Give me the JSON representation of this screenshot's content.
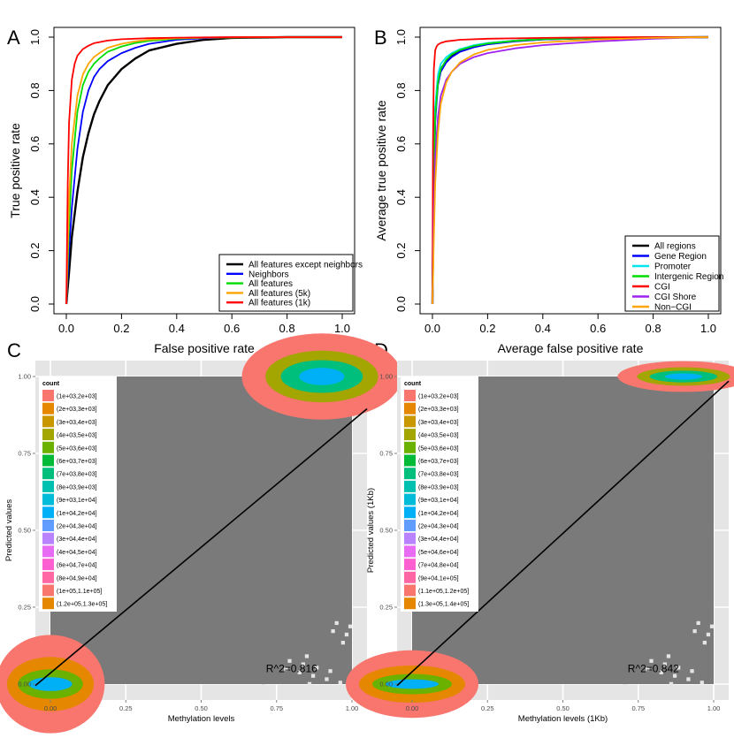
{
  "panels": {
    "A": {
      "letter": "A"
    },
    "B": {
      "letter": "B"
    },
    "C": {
      "letter": "C"
    },
    "D": {
      "letter": "D"
    }
  },
  "chart_data": [
    {
      "id": "A",
      "type": "line",
      "xlabel": "False positive rate",
      "ylabel": "True positive rate",
      "xlim": [
        0,
        1
      ],
      "ylim": [
        0,
        1
      ],
      "xticks": [
        "0.0",
        "0.2",
        "0.4",
        "0.6",
        "0.8",
        "1.0"
      ],
      "yticks": [
        "0.0",
        "0.2",
        "0.4",
        "0.6",
        "0.8",
        "1.0"
      ],
      "legend_position": "bottom-right",
      "series": [
        {
          "name": "All features except neighbors",
          "color": "#000000",
          "x": [
            0,
            0.01,
            0.02,
            0.04,
            0.06,
            0.08,
            0.1,
            0.12,
            0.15,
            0.2,
            0.25,
            0.3,
            0.4,
            0.5,
            0.6,
            0.8,
            1.0
          ],
          "y": [
            0,
            0.12,
            0.25,
            0.42,
            0.55,
            0.64,
            0.71,
            0.76,
            0.82,
            0.88,
            0.92,
            0.95,
            0.975,
            0.99,
            0.997,
            1.0,
            1.0
          ]
        },
        {
          "name": "Neighbors",
          "color": "#0000ff",
          "x": [
            0,
            0.01,
            0.02,
            0.04,
            0.06,
            0.08,
            0.1,
            0.12,
            0.15,
            0.2,
            0.25,
            0.3,
            0.4,
            0.5,
            0.6,
            0.8,
            1.0
          ],
          "y": [
            0,
            0.2,
            0.36,
            0.58,
            0.72,
            0.8,
            0.85,
            0.88,
            0.91,
            0.94,
            0.96,
            0.975,
            0.99,
            0.996,
            0.999,
            1.0,
            1.0
          ]
        },
        {
          "name": "All features",
          "color": "#00dd00",
          "x": [
            0,
            0.01,
            0.02,
            0.04,
            0.06,
            0.08,
            0.1,
            0.12,
            0.15,
            0.2,
            0.25,
            0.3,
            0.4,
            0.5,
            0.6,
            0.8,
            1.0
          ],
          "y": [
            0,
            0.3,
            0.5,
            0.72,
            0.82,
            0.87,
            0.9,
            0.92,
            0.945,
            0.965,
            0.978,
            0.986,
            0.994,
            0.998,
            0.999,
            1.0,
            1.0
          ]
        },
        {
          "name": "All features (5k)",
          "color": "#ffa500",
          "x": [
            0,
            0.01,
            0.02,
            0.04,
            0.06,
            0.08,
            0.1,
            0.12,
            0.15,
            0.2,
            0.25,
            0.3,
            0.4,
            0.5,
            0.6,
            0.8,
            1.0
          ],
          "y": [
            0,
            0.4,
            0.6,
            0.78,
            0.86,
            0.9,
            0.925,
            0.94,
            0.96,
            0.975,
            0.984,
            0.99,
            0.996,
            0.998,
            0.999,
            1.0,
            1.0
          ]
        },
        {
          "name": "All features (1k)",
          "color": "#ff0000",
          "x": [
            0,
            0.005,
            0.01,
            0.02,
            0.03,
            0.04,
            0.06,
            0.08,
            0.1,
            0.15,
            0.2,
            0.3,
            0.4,
            0.6,
            0.8,
            1.0
          ],
          "y": [
            0,
            0.45,
            0.68,
            0.84,
            0.9,
            0.93,
            0.955,
            0.968,
            0.977,
            0.987,
            0.992,
            0.996,
            0.998,
            1.0,
            1.0,
            1.0
          ]
        }
      ]
    },
    {
      "id": "B",
      "type": "line",
      "xlabel": "Average false positive rate",
      "ylabel": "Average true positive rate",
      "xlim": [
        0,
        1
      ],
      "ylim": [
        0,
        1
      ],
      "xticks": [
        "0.0",
        "0.2",
        "0.4",
        "0.6",
        "0.8",
        "1.0"
      ],
      "yticks": [
        "0.0",
        "0.2",
        "0.4",
        "0.6",
        "0.8",
        "1.0"
      ],
      "legend_position": "bottom-right",
      "series": [
        {
          "name": "All regions",
          "color": "#000000",
          "x": [
            0,
            0.005,
            0.01,
            0.02,
            0.03,
            0.05,
            0.07,
            0.1,
            0.15,
            0.2,
            0.3,
            0.4,
            0.6,
            0.8,
            1.0
          ],
          "y": [
            0,
            0.5,
            0.72,
            0.84,
            0.88,
            0.91,
            0.93,
            0.95,
            0.966,
            0.976,
            0.986,
            0.992,
            0.997,
            0.999,
            1.0
          ]
        },
        {
          "name": "Gene Region",
          "color": "#0000ff",
          "x": [
            0,
            0.005,
            0.01,
            0.02,
            0.03,
            0.05,
            0.07,
            0.1,
            0.15,
            0.2,
            0.3,
            0.4,
            0.6,
            0.8,
            1.0
          ],
          "y": [
            0,
            0.45,
            0.68,
            0.82,
            0.87,
            0.905,
            0.925,
            0.945,
            0.962,
            0.973,
            0.984,
            0.991,
            0.997,
            0.999,
            1.0
          ]
        },
        {
          "name": "Promoter",
          "color": "#00e5ee",
          "x": [
            0,
            0.005,
            0.01,
            0.02,
            0.03,
            0.05,
            0.07,
            0.1,
            0.15,
            0.2,
            0.3,
            0.4,
            0.6,
            0.8,
            1.0
          ],
          "y": [
            0,
            0.5,
            0.74,
            0.86,
            0.9,
            0.925,
            0.94,
            0.955,
            0.97,
            0.978,
            0.987,
            0.992,
            0.997,
            0.999,
            1.0
          ]
        },
        {
          "name": "Intergenic Region",
          "color": "#00dd00",
          "x": [
            0,
            0.005,
            0.01,
            0.02,
            0.03,
            0.05,
            0.07,
            0.1,
            0.15,
            0.2,
            0.3,
            0.4,
            0.6,
            0.8,
            1.0
          ],
          "y": [
            0,
            0.48,
            0.7,
            0.83,
            0.88,
            0.915,
            0.935,
            0.952,
            0.967,
            0.976,
            0.986,
            0.992,
            0.997,
            0.999,
            1.0
          ]
        },
        {
          "name": "CGI",
          "color": "#ff0000",
          "x": [
            0,
            0.002,
            0.005,
            0.01,
            0.015,
            0.02,
            0.03,
            0.05,
            0.1,
            0.2,
            0.4,
            0.6,
            0.8,
            1.0
          ],
          "y": [
            0,
            0.6,
            0.88,
            0.95,
            0.965,
            0.972,
            0.978,
            0.984,
            0.99,
            0.994,
            0.997,
            0.999,
            1.0,
            1.0
          ]
        },
        {
          "name": "CGI Shore",
          "color": "#a020f0",
          "x": [
            0,
            0.005,
            0.01,
            0.02,
            0.03,
            0.05,
            0.07,
            0.1,
            0.15,
            0.2,
            0.3,
            0.4,
            0.6,
            0.8,
            1.0
          ],
          "y": [
            0,
            0.35,
            0.55,
            0.7,
            0.78,
            0.84,
            0.87,
            0.9,
            0.925,
            0.94,
            0.958,
            0.97,
            0.984,
            0.994,
            1.0
          ]
        },
        {
          "name": "Non−CGI",
          "color": "#ffa500",
          "x": [
            0,
            0.005,
            0.01,
            0.02,
            0.03,
            0.05,
            0.07,
            0.1,
            0.15,
            0.2,
            0.3,
            0.4,
            0.6,
            0.8,
            1.0
          ],
          "y": [
            0,
            0.25,
            0.45,
            0.64,
            0.75,
            0.83,
            0.87,
            0.905,
            0.935,
            0.952,
            0.97,
            0.98,
            0.991,
            0.997,
            1.0
          ]
        }
      ]
    },
    {
      "id": "C",
      "type": "heatmap",
      "xlabel": "Methylation levels",
      "ylabel": "Predicted values",
      "xlim": [
        0,
        1
      ],
      "ylim": [
        0,
        1
      ],
      "xticks": [
        "0.00",
        "0.25",
        "0.50",
        "0.75",
        "1.00"
      ],
      "yticks": [
        "0.00",
        "0.25",
        "0.50",
        "0.75",
        "1.00"
      ],
      "annotation": "R^2=0.816",
      "annotation_at": [
        0.8,
        0.05
      ],
      "legend_title": "count",
      "legend_position": "top-left",
      "legend_bins": [
        "(1e+03,2e+03]",
        "(2e+03,3e+03]",
        "(3e+03,4e+03]",
        "(4e+03,5e+03]",
        "(5e+03,6e+03]",
        "(6e+03,7e+03]",
        "(7e+03,8e+03]",
        "(8e+03,9e+03]",
        "(9e+03,1e+04]",
        "(1e+04,2e+04]",
        "(2e+04,3e+04]",
        "(3e+04,4e+04]",
        "(4e+04,5e+04]",
        "(6e+04,7e+04]",
        "(8e+04,9e+04]",
        "(1e+05,1.1e+05]",
        "(1.2e+05,1.3e+05]"
      ],
      "fit_line": {
        "x": [
          -0.05,
          1.05
        ],
        "y": [
          -0.005,
          0.895
        ]
      },
      "dense_regions": [
        {
          "where": "top-right",
          "x": [
            0.66,
            1.0
          ],
          "y": [
            0.86,
            1.0
          ]
        },
        {
          "where": "bottom-left",
          "x": [
            0.0,
            0.18
          ],
          "y": [
            0.0,
            0.16
          ]
        }
      ]
    },
    {
      "id": "D",
      "type": "heatmap",
      "xlabel": "Methylation levels (1Kb)",
      "ylabel": "Predicted values (1Kb)",
      "xlim": [
        0,
        1
      ],
      "ylim": [
        0,
        1
      ],
      "xticks": [
        "0.00",
        "0.25",
        "0.50",
        "0.75",
        "1.00"
      ],
      "yticks": [
        "0.00",
        "0.25",
        "0.50",
        "0.75",
        "1.00"
      ],
      "annotation": "R^2=0.842",
      "annotation_at": [
        0.8,
        0.05
      ],
      "legend_title": "count",
      "legend_position": "top-left",
      "legend_bins": [
        "(1e+03,2e+03]",
        "(2e+03,3e+03]",
        "(3e+03,4e+03]",
        "(4e+03,5e+03]",
        "(5e+03,6e+03]",
        "(6e+03,7e+03]",
        "(7e+03,8e+03]",
        "(8e+03,9e+03]",
        "(9e+03,1e+04]",
        "(1e+04,2e+04]",
        "(2e+04,3e+04]",
        "(3e+04,4e+04]",
        "(5e+04,6e+04]",
        "(7e+04,8e+04]",
        "(9e+04,1e+05]",
        "(1.1e+05,1.2e+05]",
        "(1.3e+05,1.4e+05]"
      ],
      "fit_line": {
        "x": [
          -0.05,
          1.05
        ],
        "y": [
          -0.005,
          0.985
        ]
      },
      "dense_regions": [
        {
          "where": "top-right",
          "x": [
            0.72,
            1.0
          ],
          "y": [
            0.95,
            1.0
          ]
        },
        {
          "where": "bottom-left",
          "x": [
            0.0,
            0.22
          ],
          "y": [
            0.0,
            0.11
          ]
        }
      ]
    }
  ]
}
